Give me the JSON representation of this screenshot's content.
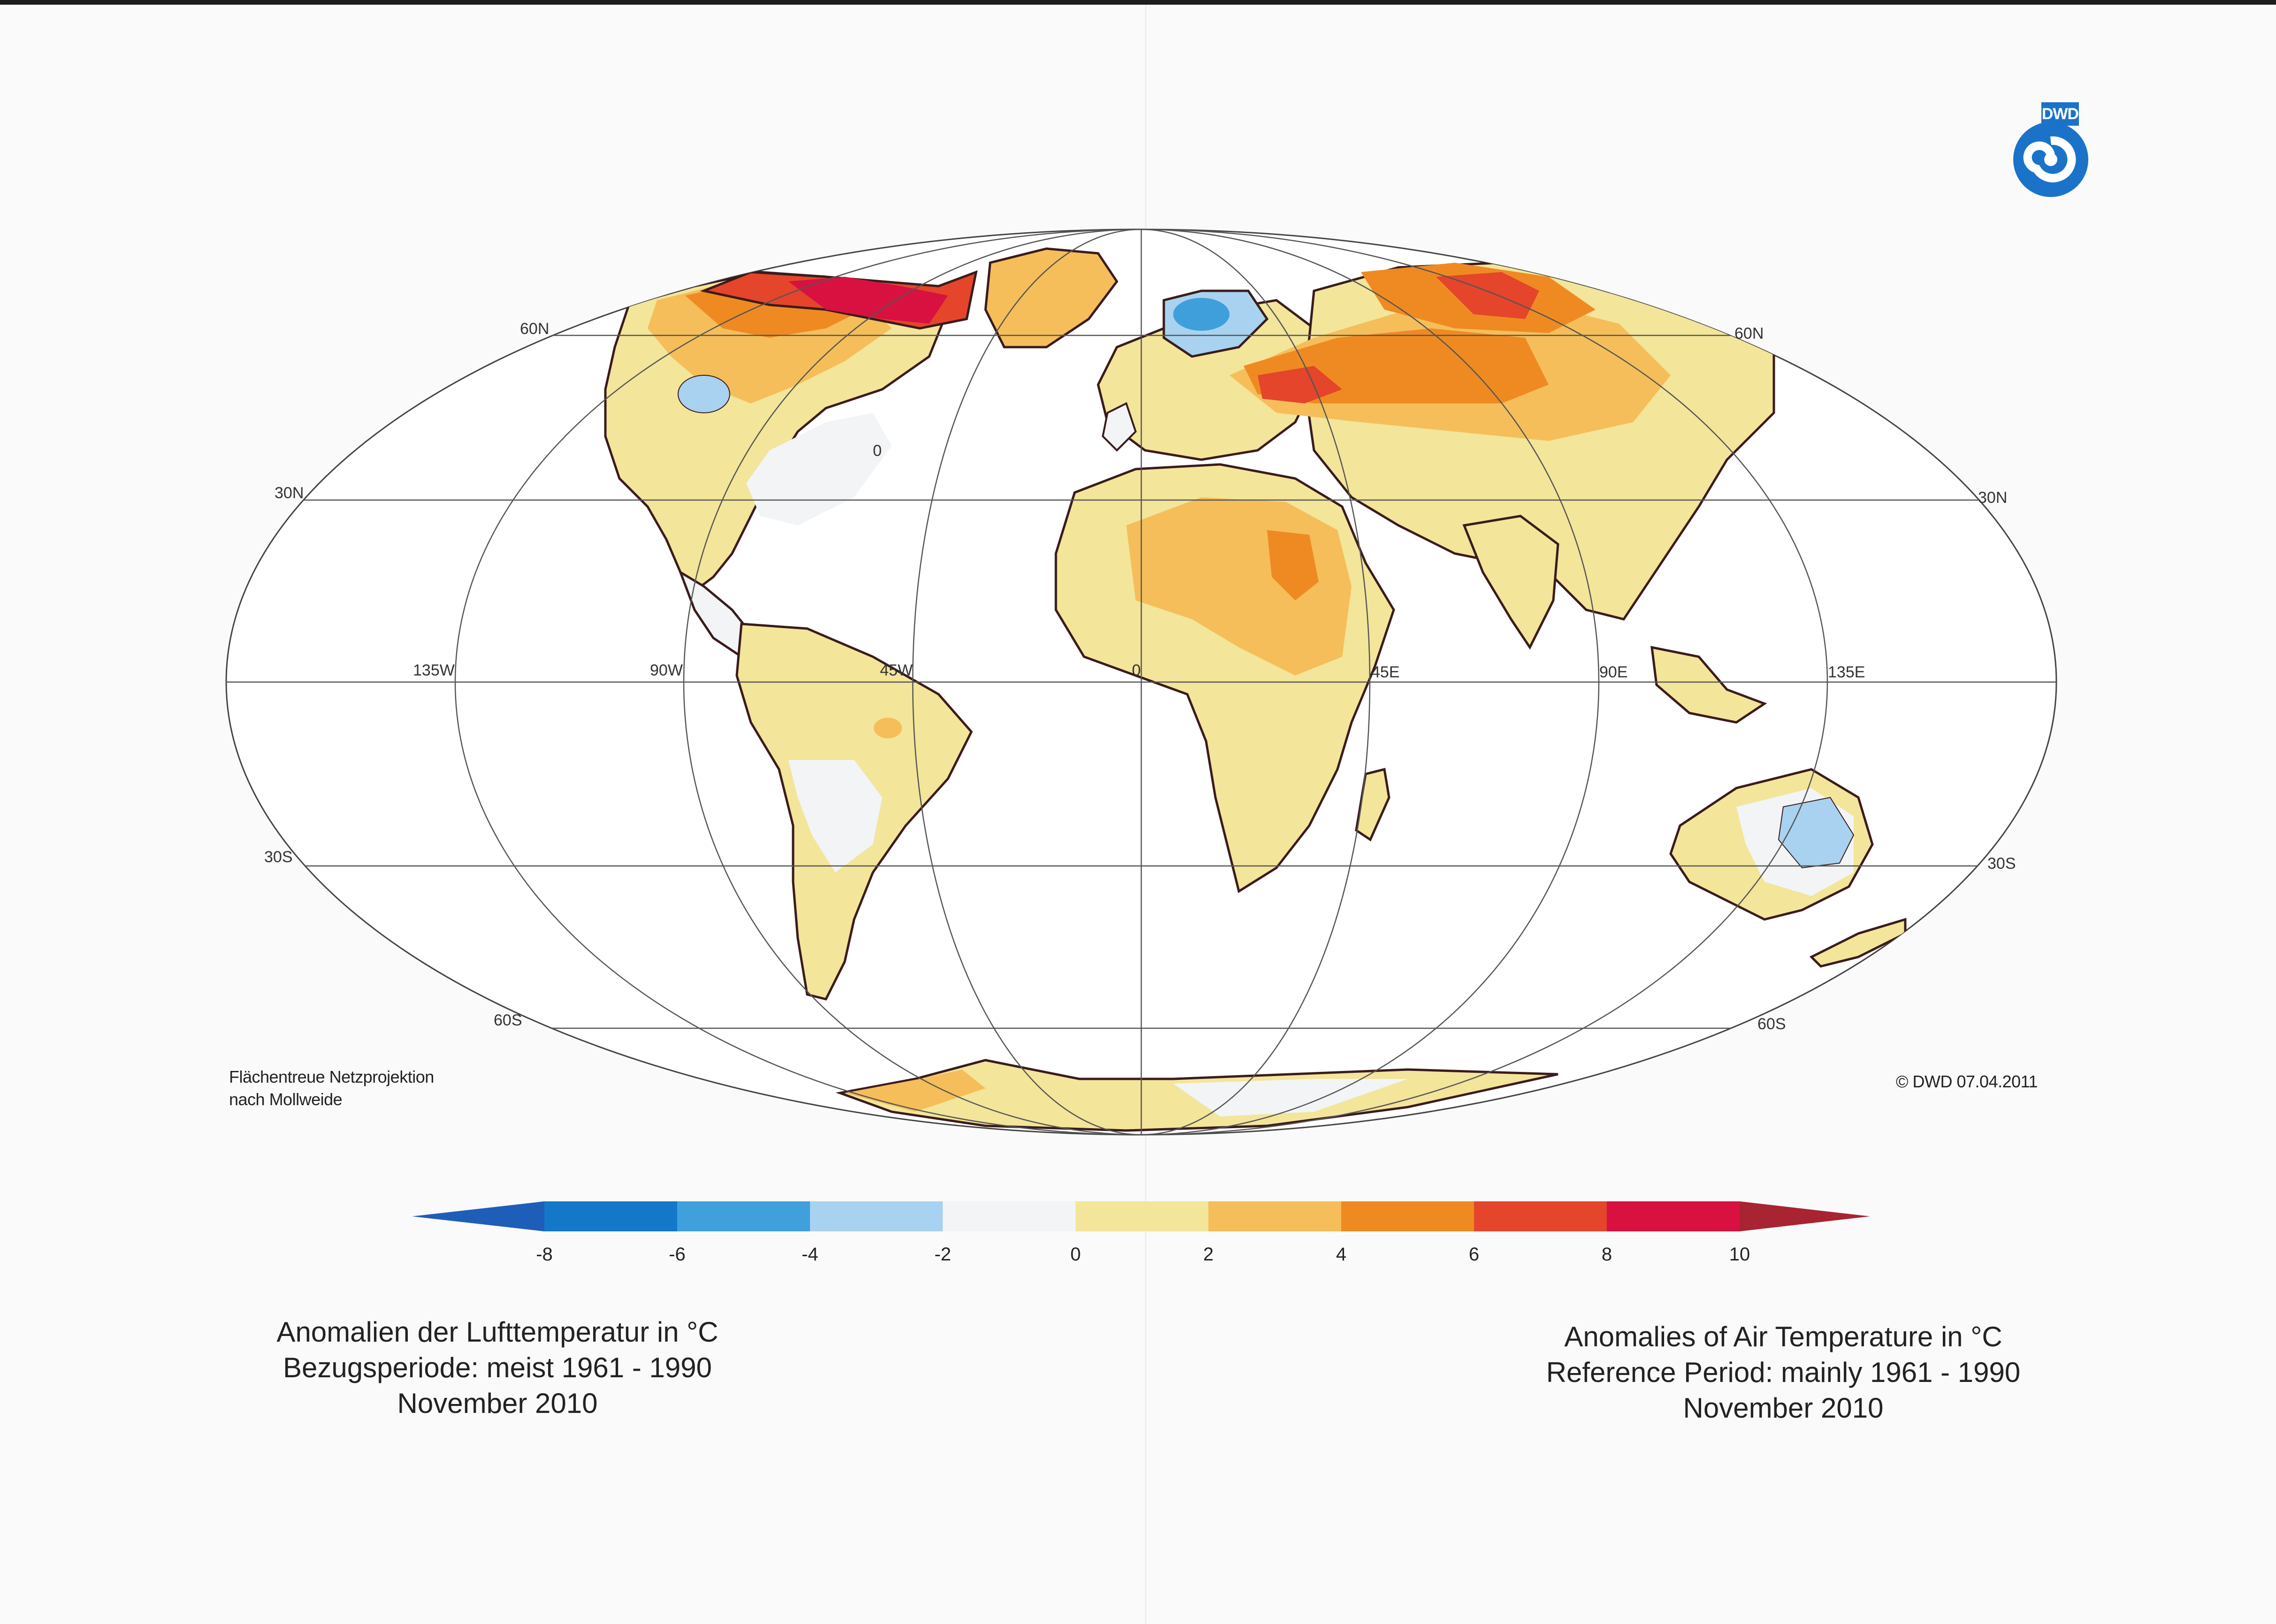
{
  "title_de": {
    "line1": "Anomalien der Lufttemperatur in °C",
    "line2": "Bezugsperiode: meist 1961 - 1990",
    "line3": "November 2010"
  },
  "title_en": {
    "line1": "Anomalies of Air Temperature in °C",
    "line2": "Reference Period: mainly 1961 - 1990",
    "line3": "November 2010"
  },
  "projection_note": {
    "line1": "Flächentreue Netzprojektion",
    "line2": "nach Mollweide"
  },
  "copyright": "© DWD 07.04.2011",
  "logo_text": "DWD",
  "grid_labels": {
    "lat_60N_left": "60N",
    "lat_60N_right": "60N",
    "lat_30N_left": "30N",
    "lat_30N_right": "30N",
    "lat_30S_left": "30S",
    "lat_30S_right": "30S",
    "lat_60S_left": "60S",
    "lat_60S_right": "60S",
    "lon_135W": "135W",
    "lon_90W": "90W",
    "lon_45W": "45W",
    "lon_0": "0",
    "lon_45E": "45E",
    "lon_90E": "90E",
    "lon_135E": "135E"
  },
  "contour_label": "0",
  "colorbar": {
    "ticks": [
      "-8",
      "-6",
      "-4",
      "-2",
      "0",
      "2",
      "4",
      "6",
      "8",
      "10"
    ],
    "colors": [
      "#1f5eb8",
      "#1478c8",
      "#3fa0dc",
      "#a8d2f0",
      "#f2f4f6",
      "#f3e59a",
      "#f5be5a",
      "#ef8a22",
      "#e4452b",
      "#d81140",
      "#a82432"
    ]
  },
  "region_colors": {
    "ocean": "#ffffff",
    "anom_neg4_neg2": "#a8d2f0",
    "anom_neg6_neg4": "#3f9fdb",
    "anom_0_2": "#f3e59a",
    "anom_2_4": "#f5be5a",
    "anom_4_6": "#ef8a22",
    "anom_6_8": "#e4452b",
    "anom_8_10": "#d81140",
    "neutral_land": "#f2f4f6",
    "coast": "#3a1c1c",
    "grid": "#555555",
    "logo_blue": "#1a73c8"
  }
}
